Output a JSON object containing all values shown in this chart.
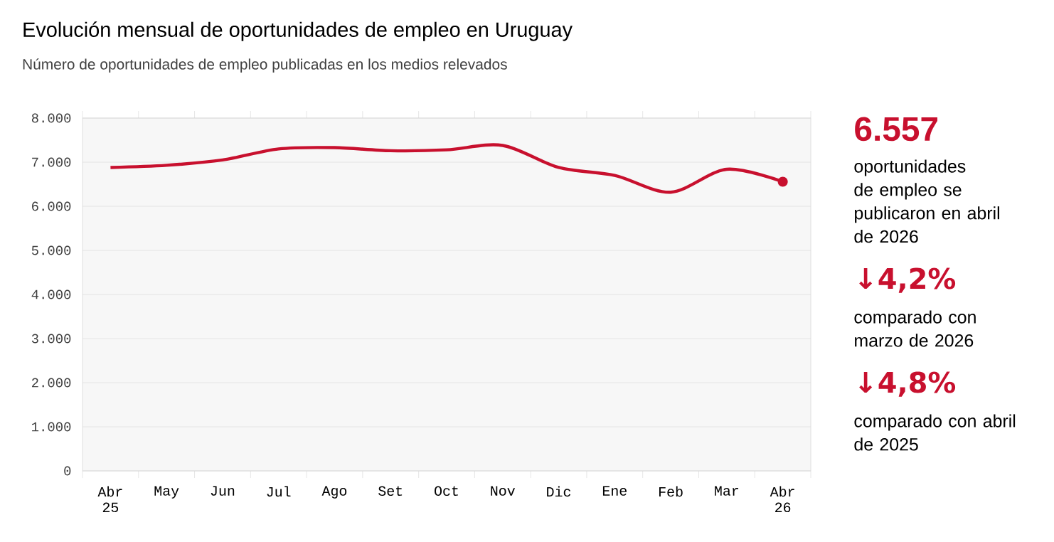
{
  "chart_data": {
    "type": "line",
    "title": "Evolución mensual de oportunidades de empleo en Uruguay",
    "subtitle": "Número de oportunidades de empleo publicadas en los medios relevados",
    "categories": [
      "Abr 25",
      "May",
      "Jun",
      "Jul",
      "Ago",
      "Set",
      "Oct",
      "Nov",
      "Dic",
      "Ene",
      "Feb",
      "Mar",
      "Abr 26"
    ],
    "series": [
      {
        "color": "#c8102e",
        "values": [
          6880,
          6930,
          7050,
          7300,
          7330,
          7260,
          7280,
          7380,
          6880,
          6700,
          6320,
          6840,
          6557
        ]
      }
    ],
    "ylim": [
      0,
      8000
    ],
    "yticks": [
      {
        "value": 0,
        "label": "0"
      },
      {
        "value": 1000,
        "label": "1.000"
      },
      {
        "value": 2000,
        "label": "2.000"
      },
      {
        "value": 3000,
        "label": "3.000"
      },
      {
        "value": 4000,
        "label": "4.000"
      },
      {
        "value": 5000,
        "label": "5.000"
      },
      {
        "value": 6000,
        "label": "6.000"
      },
      {
        "value": 7000,
        "label": "7.000"
      },
      {
        "value": 8000,
        "label": "8.000"
      }
    ],
    "grid": "y",
    "marker": "none",
    "line_style": "solid",
    "annotations": [
      {
        "text": "6.557",
        "x": "Abr 26",
        "y": 6557
      },
      "oportunidades de empleo se publicaron en abril de 2026",
      "↓4,2%",
      "comparado con marzo de 2026",
      "↓4,8%",
      "comparado con abril de 2025"
    ]
  }
}
